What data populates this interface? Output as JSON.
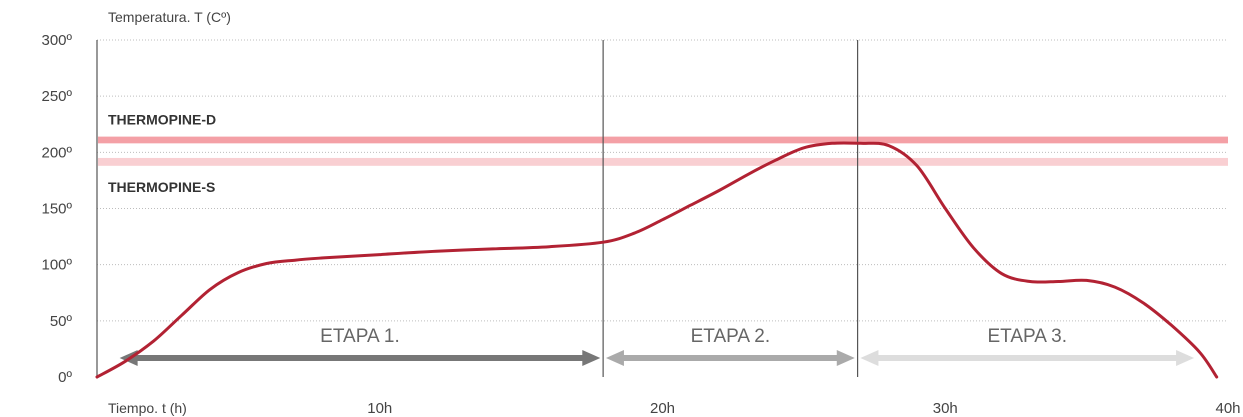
{
  "chart_data": {
    "type": "line",
    "ylabel": "Temperatura. T (Cº)",
    "xlabel": "Tiempo. t (h)",
    "ylim": [
      0,
      300
    ],
    "xlim": [
      0,
      40
    ],
    "y_ticks": [
      {
        "value": 0,
        "label": "0º"
      },
      {
        "value": 50,
        "label": "50º"
      },
      {
        "value": 100,
        "label": "100º"
      },
      {
        "value": 150,
        "label": "150º"
      },
      {
        "value": 200,
        "label": "200º"
      },
      {
        "value": 250,
        "label": "250º"
      },
      {
        "value": 300,
        "label": "300º"
      }
    ],
    "x_ticks": [
      {
        "value": 10,
        "label": "10h"
      },
      {
        "value": 20,
        "label": "20h"
      },
      {
        "value": 30,
        "label": "30h"
      },
      {
        "value": 40,
        "label": "40h"
      }
    ],
    "grid": "horizontal-dotted",
    "series": [
      {
        "color": "#b22233",
        "points": [
          [
            0,
            0
          ],
          [
            1,
            14
          ],
          [
            2,
            32
          ],
          [
            3,
            55
          ],
          [
            4,
            78
          ],
          [
            5,
            93
          ],
          [
            6,
            101
          ],
          [
            7,
            104
          ],
          [
            8,
            106
          ],
          [
            10,
            109
          ],
          [
            12,
            112
          ],
          [
            14,
            114
          ],
          [
            16,
            116
          ],
          [
            17.9,
            120
          ],
          [
            19,
            128
          ],
          [
            20,
            140
          ],
          [
            21,
            153
          ],
          [
            22,
            166
          ],
          [
            23,
            180
          ],
          [
            24,
            193
          ],
          [
            25,
            204
          ],
          [
            26,
            208
          ],
          [
            27,
            208
          ],
          [
            28,
            206
          ],
          [
            29,
            188
          ],
          [
            30,
            150
          ],
          [
            31,
            115
          ],
          [
            32,
            92
          ],
          [
            33,
            85
          ],
          [
            34,
            85
          ],
          [
            35,
            86
          ],
          [
            36,
            80
          ],
          [
            37,
            66
          ],
          [
            38,
            46
          ],
          [
            39,
            22
          ],
          [
            39.6,
            0
          ]
        ]
      }
    ],
    "bands": [
      {
        "label": "THERMOPINE-D",
        "y_from": 208,
        "y_to": 214,
        "color": "#f4a0a6"
      },
      {
        "label": "THERMOPINE-S",
        "y_from": 188,
        "y_to": 195,
        "color": "#f9cfd2"
      }
    ],
    "stage_dividers": [
      17.9,
      26.9
    ],
    "stages": [
      {
        "label": "ETAPA 1.",
        "x_from": 0.8,
        "x_to": 17.8,
        "color": "#777777"
      },
      {
        "label": "ETAPA 2.",
        "x_from": 18.0,
        "x_to": 26.8,
        "color": "#aaaaaa"
      },
      {
        "label": "ETAPA 3.",
        "x_from": 27.0,
        "x_to": 38.8,
        "color": "#dddddd"
      }
    ]
  }
}
